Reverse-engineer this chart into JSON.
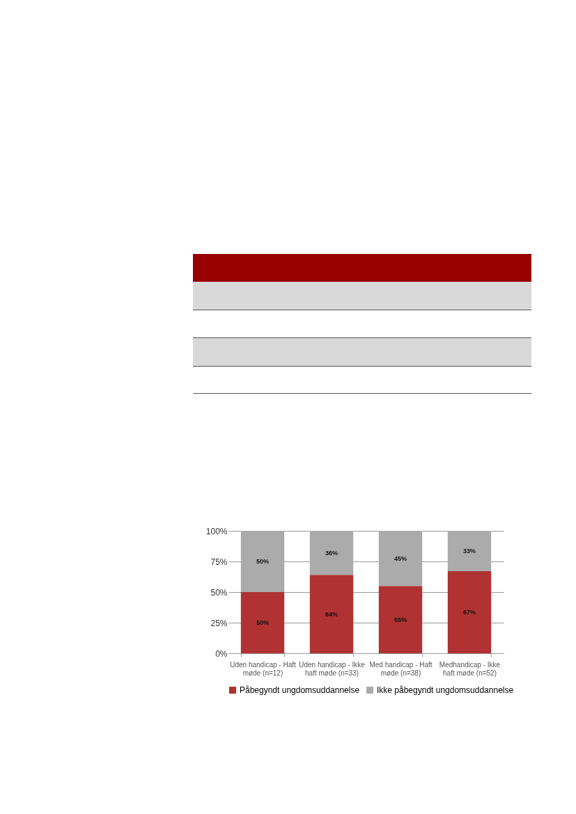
{
  "chart_data": {
    "type": "bar",
    "stacked": true,
    "categories": [
      "Uden handicap - Haft møde (n=12)",
      "Uden handicap - Ikke haft møde (n=33)",
      "Med handicap - Haft møde (n=38)",
      "Medhandicap - Ikke haft møde (n=52)"
    ],
    "series": [
      {
        "name": "Påbegyndt ungdomsuddannelse",
        "color": "#b03232",
        "values": [
          50,
          64,
          55,
          67
        ],
        "value_labels": [
          "50%",
          "64%",
          "55%",
          "67%"
        ]
      },
      {
        "name": "Ikke påbegyndt ungdomsuddannelse",
        "color": "#ababab",
        "values": [
          50,
          36,
          45,
          33
        ],
        "value_labels": [
          "50%",
          "36%",
          "45%",
          "33%"
        ]
      }
    ],
    "ylim": [
      0,
      100
    ],
    "yticks": [
      {
        "value": 0,
        "label": "0%"
      },
      {
        "value": 25,
        "label": "25%"
      },
      {
        "value": 50,
        "label": "50%"
      },
      {
        "value": 75,
        "label": "75%"
      },
      {
        "value": 100,
        "label": "100%"
      }
    ],
    "grid": "y",
    "legend": "bottom"
  }
}
